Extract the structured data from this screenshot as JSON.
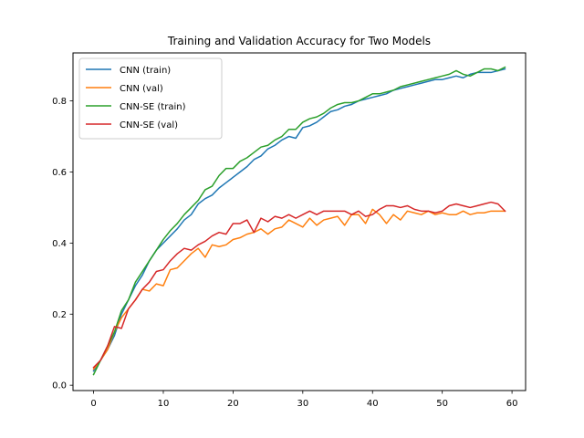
{
  "chart_data": {
    "type": "line",
    "title": "Training and Validation Accuracy for Two Models",
    "xlabel": "",
    "ylabel": "",
    "xlim": [
      -2.95,
      61.95
    ],
    "ylim": [
      -0.015,
      0.935
    ],
    "x_ticks": [
      0,
      10,
      20,
      30,
      40,
      50,
      60
    ],
    "y_ticks": [
      0.0,
      0.2,
      0.4,
      0.6,
      0.8
    ],
    "x_tick_labels": [
      "0",
      "10",
      "20",
      "30",
      "40",
      "50",
      "60"
    ],
    "y_tick_labels": [
      "0.0",
      "0.2",
      "0.4",
      "0.6",
      "0.8"
    ],
    "grid": false,
    "legend_position": "top-left",
    "x": [
      0,
      1,
      2,
      3,
      4,
      5,
      6,
      7,
      8,
      9,
      10,
      11,
      12,
      13,
      14,
      15,
      16,
      17,
      18,
      19,
      20,
      21,
      22,
      23,
      24,
      25,
      26,
      27,
      28,
      29,
      30,
      31,
      32,
      33,
      34,
      35,
      36,
      37,
      38,
      39,
      40,
      41,
      42,
      43,
      44,
      45,
      46,
      47,
      48,
      49,
      50,
      51,
      52,
      53,
      54,
      55,
      56,
      57,
      58,
      59
    ],
    "series": [
      {
        "name": "CNN (train)",
        "color": "#1f77b4",
        "values": [
          0.04,
          0.07,
          0.1,
          0.14,
          0.2,
          0.24,
          0.28,
          0.31,
          0.35,
          0.38,
          0.4,
          0.42,
          0.44,
          0.465,
          0.48,
          0.51,
          0.525,
          0.535,
          0.555,
          0.57,
          0.585,
          0.6,
          0.615,
          0.635,
          0.645,
          0.665,
          0.675,
          0.69,
          0.7,
          0.695,
          0.725,
          0.73,
          0.74,
          0.755,
          0.77,
          0.775,
          0.785,
          0.79,
          0.8,
          0.805,
          0.81,
          0.815,
          0.82,
          0.83,
          0.835,
          0.84,
          0.845,
          0.85,
          0.855,
          0.86,
          0.86,
          0.865,
          0.87,
          0.865,
          0.875,
          0.88,
          0.88,
          0.88,
          0.885,
          0.89
        ]
      },
      {
        "name": "CNN (val)",
        "color": "#ff7f0e",
        "values": [
          0.045,
          0.07,
          0.1,
          0.15,
          0.19,
          0.215,
          0.24,
          0.27,
          0.265,
          0.285,
          0.28,
          0.325,
          0.33,
          0.35,
          0.37,
          0.385,
          0.36,
          0.395,
          0.39,
          0.395,
          0.41,
          0.415,
          0.425,
          0.43,
          0.44,
          0.425,
          0.44,
          0.445,
          0.465,
          0.455,
          0.445,
          0.47,
          0.45,
          0.465,
          0.47,
          0.475,
          0.45,
          0.48,
          0.48,
          0.455,
          0.495,
          0.48,
          0.455,
          0.48,
          0.465,
          0.49,
          0.485,
          0.48,
          0.49,
          0.48,
          0.485,
          0.48,
          0.48,
          0.49,
          0.48,
          0.485,
          0.485,
          0.49,
          0.49,
          0.49
        ]
      },
      {
        "name": "CNN-SE (train)",
        "color": "#2ca02c",
        "values": [
          0.03,
          0.07,
          0.11,
          0.15,
          0.21,
          0.24,
          0.29,
          0.32,
          0.35,
          0.38,
          0.41,
          0.435,
          0.455,
          0.48,
          0.5,
          0.52,
          0.55,
          0.56,
          0.59,
          0.61,
          0.61,
          0.63,
          0.64,
          0.655,
          0.67,
          0.675,
          0.69,
          0.7,
          0.72,
          0.72,
          0.74,
          0.75,
          0.755,
          0.765,
          0.78,
          0.79,
          0.795,
          0.795,
          0.8,
          0.81,
          0.82,
          0.82,
          0.825,
          0.83,
          0.84,
          0.845,
          0.85,
          0.855,
          0.86,
          0.865,
          0.87,
          0.875,
          0.885,
          0.875,
          0.87,
          0.88,
          0.89,
          0.89,
          0.885,
          0.895
        ]
      },
      {
        "name": "CNN-SE (val)",
        "color": "#d62728",
        "values": [
          0.05,
          0.07,
          0.11,
          0.165,
          0.16,
          0.215,
          0.24,
          0.27,
          0.29,
          0.32,
          0.325,
          0.35,
          0.37,
          0.385,
          0.38,
          0.395,
          0.405,
          0.42,
          0.43,
          0.425,
          0.455,
          0.455,
          0.465,
          0.43,
          0.47,
          0.46,
          0.475,
          0.47,
          0.48,
          0.47,
          0.48,
          0.49,
          0.48,
          0.49,
          0.49,
          0.49,
          0.49,
          0.48,
          0.49,
          0.475,
          0.48,
          0.495,
          0.505,
          0.505,
          0.5,
          0.505,
          0.495,
          0.49,
          0.49,
          0.485,
          0.49,
          0.505,
          0.51,
          0.505,
          0.5,
          0.505,
          0.51,
          0.515,
          0.51,
          0.49
        ]
      }
    ]
  }
}
